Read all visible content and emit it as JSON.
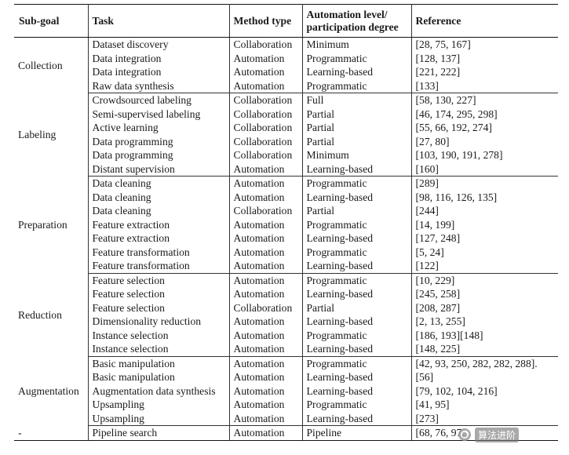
{
  "headers": {
    "subgoal": "Sub-goal",
    "task": "Task",
    "method": "Method type",
    "level": "Automation level/\nparticipation degree",
    "reference": "Reference"
  },
  "groups": [
    {
      "name": "Collection",
      "rows": [
        [
          "Dataset discovery",
          "Collaboration",
          "Minimum",
          "[28, 75, 167]"
        ],
        [
          "Data integration",
          "Automation",
          "Programmatic",
          "[128, 137]"
        ],
        [
          "Data integration",
          "Automation",
          "Learning-based",
          "[221, 222]"
        ],
        [
          "Raw data synthesis",
          "Automation",
          "Programmatic",
          "[133]"
        ]
      ]
    },
    {
      "name": "Labeling",
      "rows": [
        [
          "Crowdsourced labeling",
          "Collaboration",
          "Full",
          "[58, 130, 227]"
        ],
        [
          "Semi-supervised labeling",
          "Collaboration",
          "Partial",
          "[46, 174, 295, 298]"
        ],
        [
          "Active learning",
          "Collaboration",
          "Partial",
          "[55, 66, 192, 274]"
        ],
        [
          "Data programming",
          "Collaboration",
          "Partial",
          "[27, 80]"
        ],
        [
          "Data programming",
          "Collaboration",
          "Minimum",
          "[103, 190, 191, 278]"
        ],
        [
          "Distant supervision",
          "Automation",
          "Learning-based",
          "[160]"
        ]
      ]
    },
    {
      "name": "Preparation",
      "rows": [
        [
          "Data cleaning",
          "Automation",
          "Programmatic",
          "[289]"
        ],
        [
          "Data cleaning",
          "Automation",
          "Learning-based",
          "[98, 116, 126, 135]"
        ],
        [
          "Data cleaning",
          "Collaboration",
          "Partial",
          "[244]"
        ],
        [
          "Feature extraction",
          "Automation",
          "Programmatic",
          "[14, 199]"
        ],
        [
          "Feature extraction",
          "Automation",
          "Learning-based",
          "[127, 248]"
        ],
        [
          "Feature transformation",
          "Automation",
          "Programmatic",
          "[5, 24]"
        ],
        [
          "Feature transformation",
          "Automation",
          "Learning-based",
          "[122]"
        ]
      ]
    },
    {
      "name": "Reduction",
      "rows": [
        [
          "Feature selection",
          "Automation",
          "Programmatic",
          "[10, 229]"
        ],
        [
          "Feature selection",
          "Automation",
          "Learning-based",
          "[245, 258]"
        ],
        [
          "Feature selection",
          "Collaboration",
          "Partial",
          "[208, 287]"
        ],
        [
          "Dimensionality reduction",
          "Automation",
          "Learning-based",
          "[2, 13, 255]"
        ],
        [
          "Instance selection",
          "Automation",
          "Programmatic",
          "[186, 193][148]"
        ],
        [
          "Instance selection",
          "Automation",
          "Learning-based",
          "[148, 225]"
        ]
      ]
    },
    {
      "name": "Augmentation",
      "rows": [
        [
          "Basic manipulation",
          "Automation",
          "Programmatic",
          "[42, 93, 250, 282, 282, 288]."
        ],
        [
          "Basic manipulation",
          "Automation",
          "Learning-based",
          "[56]"
        ],
        [
          "Augmentation data synthesis",
          "Automation",
          "Learning-based",
          "[79, 102, 104, 216]"
        ],
        [
          "Upsampling",
          "Automation",
          "Programmatic",
          "[41, 95]"
        ],
        [
          "Upsampling",
          "Automation",
          "Learning-based",
          "[273]"
        ]
      ]
    },
    {
      "name": "-",
      "rows": [
        [
          "Pipeline search",
          "Automation",
          "Pipeline",
          "[68, 76, 97,"
        ]
      ]
    }
  ],
  "watermark": {
    "text": "算法进阶",
    "icon": "wechat-official-account-icon"
  }
}
